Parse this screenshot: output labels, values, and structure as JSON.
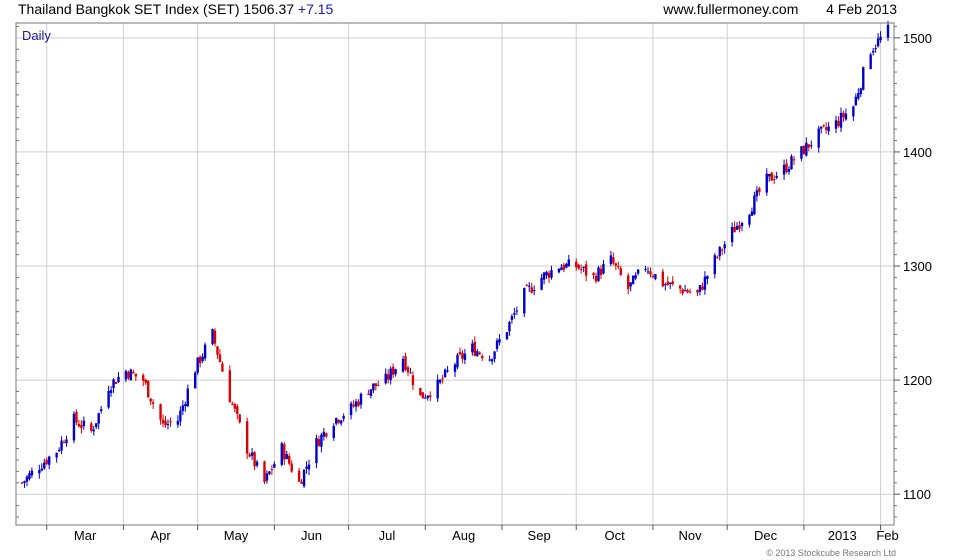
{
  "header": {
    "title": "Thailand Bangkok SET Index (SET)",
    "last": "1506.37",
    "change": "+7.15",
    "site": "www.fullermoney.com",
    "date": "4 Feb 2013"
  },
  "footer": {
    "copyright": "© 2013 Stockcube Research Ltd"
  },
  "colors": {
    "up": "#0000cc",
    "down": "#dd0000",
    "grid": "#cfcfcf",
    "frame": "#777777",
    "label": "#1a1a9a"
  },
  "chart_data": {
    "type": "candlestick",
    "period_label": "Daily",
    "x_tick_labels": [
      "Mar",
      "Apr",
      "May",
      "Jun",
      "Jul",
      "Aug",
      "Sep",
      "Oct",
      "Nov",
      "Dec",
      "2013",
      "Feb"
    ],
    "y_tick_labels": [
      "1100",
      "1200",
      "1300",
      "1400",
      "1500"
    ],
    "ylim": [
      1073,
      1513
    ],
    "y_axis_side": "right",
    "grid": true,
    "series": [
      {
        "x_start": "2012-02-20",
        "x_end": "2013-02-04",
        "close_points": [
          [
            "2012-02-20",
            1110
          ],
          [
            "2012-02-27",
            1125
          ],
          [
            "2012-03-05",
            1138
          ],
          [
            "2012-03-12",
            1165
          ],
          [
            "2012-03-19",
            1155
          ],
          [
            "2012-03-23",
            1175
          ],
          [
            "2012-03-26",
            1195
          ],
          [
            "2012-04-02",
            1208
          ],
          [
            "2012-04-09",
            1200
          ],
          [
            "2012-04-17",
            1160
          ],
          [
            "2012-04-23",
            1165
          ],
          [
            "2012-04-30",
            1210
          ],
          [
            "2012-05-07",
            1240
          ],
          [
            "2012-05-14",
            1185
          ],
          [
            "2012-05-21",
            1140
          ],
          [
            "2012-05-28",
            1110
          ],
          [
            "2012-06-04",
            1140
          ],
          [
            "2012-06-11",
            1110
          ],
          [
            "2012-06-18",
            1145
          ],
          [
            "2012-06-25",
            1165
          ],
          [
            "2012-07-02",
            1175
          ],
          [
            "2012-07-09",
            1192
          ],
          [
            "2012-07-16",
            1200
          ],
          [
            "2012-07-23",
            1220
          ],
          [
            "2012-07-30",
            1185
          ],
          [
            "2012-08-06",
            1195
          ],
          [
            "2012-08-13",
            1215
          ],
          [
            "2012-08-20",
            1228
          ],
          [
            "2012-08-27",
            1220
          ],
          [
            "2012-09-03",
            1245
          ],
          [
            "2012-09-10",
            1275
          ],
          [
            "2012-09-17",
            1290
          ],
          [
            "2012-09-24",
            1300
          ],
          [
            "2012-10-01",
            1300
          ],
          [
            "2012-10-08",
            1290
          ],
          [
            "2012-10-15",
            1305
          ],
          [
            "2012-10-22",
            1280
          ],
          [
            "2012-10-29",
            1300
          ],
          [
            "2012-11-05",
            1285
          ],
          [
            "2012-11-12",
            1280
          ],
          [
            "2012-11-19",
            1275
          ],
          [
            "2012-11-26",
            1305
          ],
          [
            "2012-12-03",
            1330
          ],
          [
            "2012-12-10",
            1350
          ],
          [
            "2012-12-17",
            1375
          ],
          [
            "2012-12-24",
            1385
          ],
          [
            "2012-12-31",
            1400
          ],
          [
            "2013-01-07",
            1415
          ],
          [
            "2013-01-14",
            1425
          ],
          [
            "2013-01-21",
            1440
          ],
          [
            "2013-01-28",
            1490
          ],
          [
            "2013-02-04",
            1506
          ]
        ]
      }
    ]
  }
}
